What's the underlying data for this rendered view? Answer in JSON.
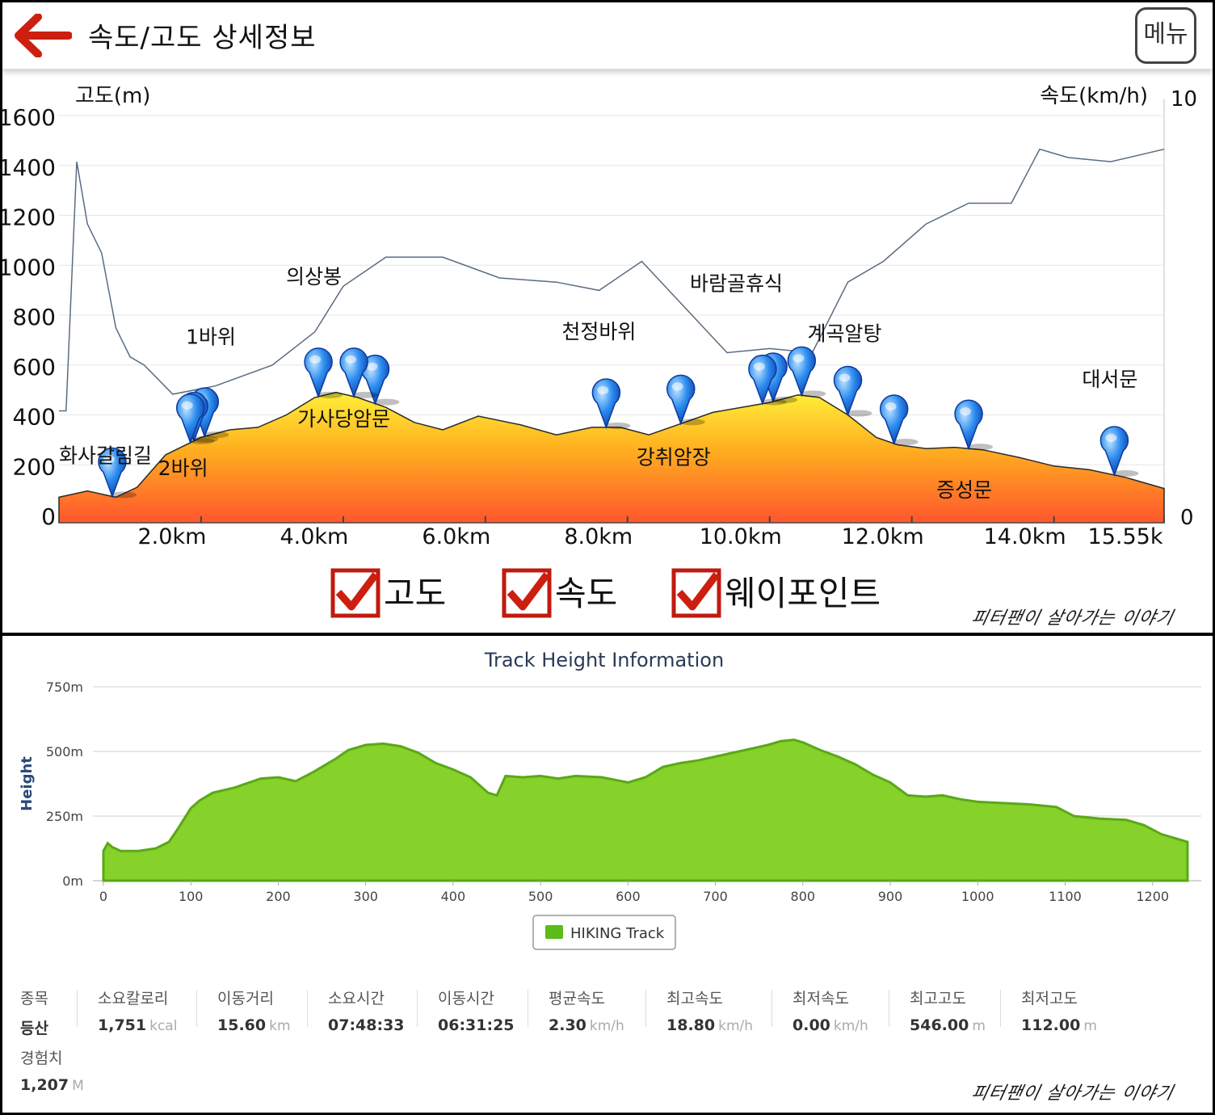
{
  "header": {
    "title": "속도/고도 상세정보",
    "menu_label": "메뉴",
    "colors": {
      "back_arrow": "#cc1f10"
    }
  },
  "top_chart": {
    "left_axis_title": "고도(m)",
    "right_axis_title": "속도(km/h)",
    "left_ticks": [
      "0",
      "200",
      "400",
      "600",
      "800",
      "1000",
      "1200",
      "1400",
      "1600"
    ],
    "right_ticks": [
      "0",
      "10"
    ],
    "x_ticks": [
      "2.0km",
      "4.0km",
      "6.0km",
      "8.0km",
      "10.0km",
      "12.0km",
      "14.0km",
      "15.55k"
    ],
    "waypoints": [
      "화사갈림길",
      "1바위",
      "2바위",
      "의상봉",
      "가사당암문",
      "천정바위",
      "강취암장",
      "바람골휴식",
      "계곡알탕",
      "증성문",
      "대서문"
    ],
    "toggles": [
      {
        "label": "고도",
        "checked": true
      },
      {
        "label": "속도",
        "checked": true
      },
      {
        "label": "웨이포인트",
        "checked": true
      }
    ],
    "colors": {
      "fill_top": "#fff23a",
      "fill_mid": "#ffb020",
      "fill_bottom": "#ff5a2c",
      "speed_line": "#5a6c80",
      "pin": "#1f6fe0",
      "check": "#cc1f10"
    }
  },
  "watermark_top": "피터팬이 살아가는 이야기",
  "bottom_chart": {
    "title": "Track Height Information",
    "ylabel": "Height",
    "y_ticks": [
      "0m",
      "250m",
      "500m",
      "750m"
    ],
    "x_ticks": [
      "0",
      "100",
      "200",
      "300",
      "400",
      "500",
      "600",
      "700",
      "800",
      "900",
      "1000",
      "1100",
      "1200"
    ],
    "legend": "HIKING Track",
    "colors": {
      "fill": "#86d12a",
      "line": "#5aa818"
    }
  },
  "chart_data": [
    {
      "type": "area",
      "series": [
        {
          "name": "고도",
          "x": [
            0.0,
            0.4,
            0.8,
            1.1,
            1.5,
            2.0,
            2.4,
            2.8,
            3.2,
            3.6,
            3.9,
            4.2,
            4.6,
            5.0,
            5.4,
            5.9,
            6.5,
            7.0,
            7.5,
            7.9,
            8.3,
            8.8,
            9.2,
            9.6,
            10.0,
            10.4,
            10.7,
            11.1,
            11.5,
            11.8,
            12.2,
            12.6,
            13.0,
            13.5,
            14.0,
            14.5,
            15.0,
            15.55
          ],
          "values": [
            70,
            95,
            70,
            110,
            240,
            310,
            340,
            350,
            400,
            470,
            490,
            470,
            430,
            370,
            340,
            395,
            360,
            320,
            350,
            350,
            320,
            370,
            410,
            430,
            450,
            480,
            470,
            400,
            310,
            280,
            265,
            270,
            260,
            230,
            195,
            180,
            150,
            105
          ]
        },
        {
          "name": "속도",
          "x": [
            0.0,
            0.1,
            0.25,
            0.4,
            0.6,
            0.8,
            1.0,
            1.2,
            1.6,
            2.2,
            3.0,
            3.6,
            4.0,
            4.6,
            5.4,
            6.2,
            7.0,
            7.6,
            8.2,
            8.8,
            9.4,
            10.0,
            10.6,
            11.1,
            11.6,
            12.2,
            12.8,
            13.4,
            13.8,
            14.2,
            14.8,
            15.55
          ],
          "values": [
            2.5,
            2.5,
            8.5,
            7.0,
            6.3,
            4.5,
            3.8,
            3.6,
            2.9,
            3.1,
            3.6,
            4.4,
            5.5,
            6.2,
            6.2,
            5.7,
            5.6,
            5.4,
            6.1,
            5.0,
            3.9,
            4.0,
            3.9,
            5.6,
            6.1,
            7.0,
            7.5,
            7.5,
            8.8,
            8.6,
            8.5,
            8.8
          ]
        }
      ],
      "xlim": [
        0,
        15.55
      ],
      "ylim_left": [
        0,
        1600
      ],
      "ylim_right": [
        0,
        10
      ]
    },
    {
      "type": "area",
      "title": "Track Height Information",
      "ylabel": "Height",
      "ylim": [
        0,
        750
      ],
      "xlim": [
        0,
        1240
      ],
      "series": [
        {
          "name": "HIKING Track",
          "x": [
            0,
            5,
            10,
            20,
            40,
            60,
            75,
            85,
            100,
            110,
            125,
            150,
            180,
            200,
            220,
            240,
            265,
            280,
            300,
            320,
            340,
            360,
            380,
            400,
            420,
            440,
            450,
            460,
            480,
            500,
            520,
            540,
            570,
            600,
            620,
            640,
            660,
            680,
            700,
            720,
            740,
            760,
            775,
            790,
            800,
            820,
            840,
            860,
            880,
            900,
            920,
            940,
            960,
            980,
            1000,
            1030,
            1060,
            1090,
            1110,
            1140,
            1170,
            1190,
            1210,
            1240
          ],
          "values": [
            115,
            145,
            130,
            115,
            115,
            125,
            150,
            200,
            280,
            310,
            340,
            360,
            395,
            400,
            385,
            420,
            470,
            505,
            525,
            530,
            520,
            495,
            455,
            430,
            400,
            340,
            330,
            405,
            400,
            405,
            395,
            405,
            400,
            380,
            400,
            440,
            455,
            465,
            480,
            495,
            510,
            525,
            540,
            545,
            535,
            505,
            480,
            450,
            410,
            380,
            330,
            325,
            330,
            315,
            305,
            300,
            295,
            285,
            250,
            240,
            235,
            215,
            180,
            150
          ]
        }
      ]
    }
  ],
  "stats": [
    {
      "label": "종목",
      "value": "등산",
      "unit": "",
      "extra_label": "경험치",
      "extra_value": "1,207",
      "extra_unit": "M"
    },
    {
      "label": "소요칼로리",
      "value": "1,751",
      "unit": "kcal"
    },
    {
      "label": "이동거리",
      "value": "15.60",
      "unit": "km"
    },
    {
      "label": "소요시간",
      "value": "07:48:33",
      "unit": ""
    },
    {
      "label": "이동시간",
      "value": "06:31:25",
      "unit": ""
    },
    {
      "label": "평균속도",
      "value": "2.30",
      "unit": "km/h"
    },
    {
      "label": "최고속도",
      "value": "18.80",
      "unit": "km/h"
    },
    {
      "label": "최저속도",
      "value": "0.00",
      "unit": "km/h"
    },
    {
      "label": "최고고도",
      "value": "546.00",
      "unit": "m"
    },
    {
      "label": "최저고도",
      "value": "112.00",
      "unit": "m"
    }
  ],
  "watermark_bottom": "피터팬이 살아가는 이야기"
}
